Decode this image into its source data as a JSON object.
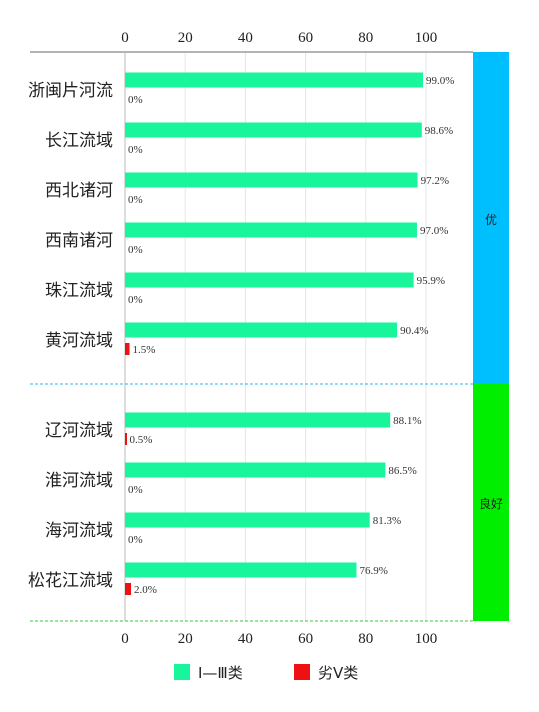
{
  "chart_data": {
    "type": "bar",
    "orientation": "horizontal",
    "xlim": [
      0,
      100
    ],
    "xticks": [
      "0",
      "20",
      "40",
      "60",
      "80",
      "100"
    ],
    "categories": [
      "浙闽片河流",
      "长江流域",
      "西北诸河",
      "西南诸河",
      "珠江流域",
      "黄河流域",
      "辽河流域",
      "淮河流域",
      "海河流域",
      "松花江流域"
    ],
    "series": [
      {
        "name": "Ⅰ—Ⅲ类",
        "color": "#19F59A",
        "values": [
          99.0,
          98.6,
          97.2,
          97.0,
          95.9,
          90.4,
          88.1,
          86.5,
          81.3,
          76.9
        ],
        "labels": [
          "99.0%",
          "98.6%",
          "97.2%",
          "97.0%",
          "95.9%",
          "90.4%",
          "88.1%",
          "86.5%",
          "81.3%",
          "76.9%"
        ]
      },
      {
        "name": "劣Ⅴ类",
        "color": "#EE1111",
        "values": [
          0,
          0,
          0,
          0,
          0,
          1.5,
          0.5,
          0,
          0,
          2.0
        ],
        "labels": [
          "0%",
          "0%",
          "0%",
          "0%",
          "0%",
          "1.5%",
          "0.5%",
          "0%",
          "0%",
          "2.0%"
        ]
      }
    ],
    "groups": [
      {
        "label": "优",
        "color": "#00BFFF",
        "count": 6
      },
      {
        "label": "良好",
        "color": "#00EE00",
        "count": 4
      }
    ],
    "grid": true,
    "legend_position": "bottom"
  }
}
